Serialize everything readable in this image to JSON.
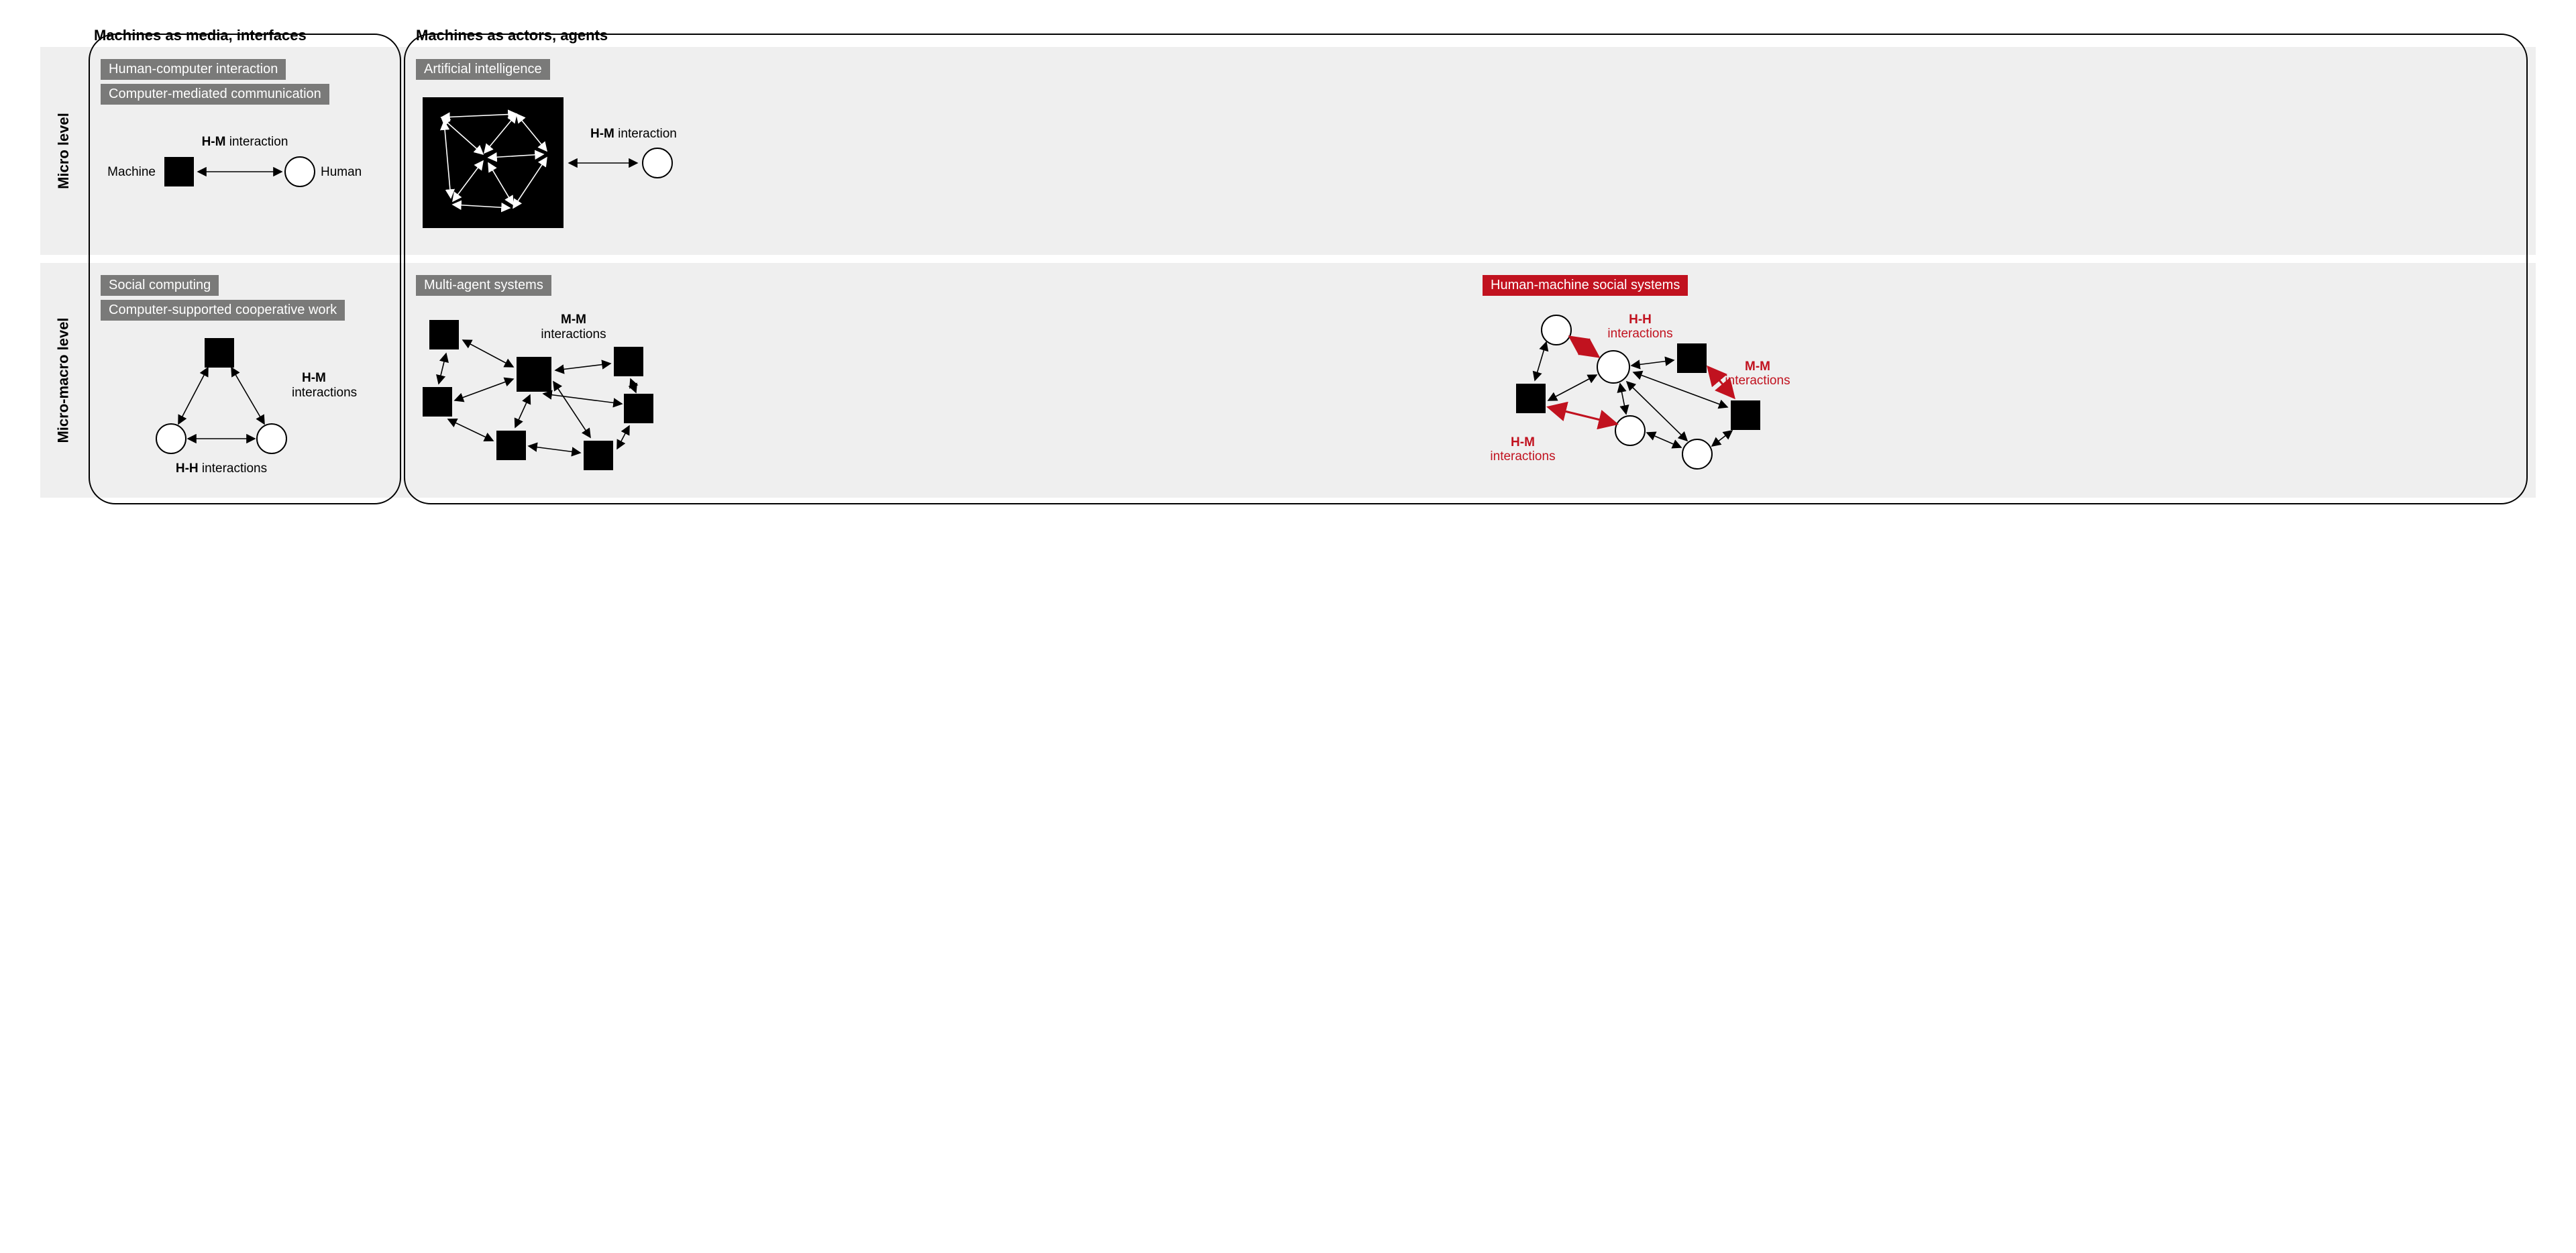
{
  "colors": {
    "background": "#ffffff",
    "row_bg": "#efefef",
    "tag_grey": "#7a7a79",
    "tag_red": "#c1121f",
    "text": "#000000",
    "red": "#c1121f",
    "node_machine_fill": "#000000",
    "node_human_fill": "#ffffff",
    "node_human_stroke": "#000000",
    "blackbox_bg": "#000000",
    "blackbox_fg": "#ffffff"
  },
  "headers": {
    "col_left": "Machines as media, interfaces",
    "col_right": "Machines as actors, agents",
    "row_top": "Micro level",
    "row_bottom": "Micro-macro level"
  },
  "q11": {
    "tags": [
      "Human-computer interaction",
      "Computer-mediated communication"
    ],
    "label_title_bold": "H-M",
    "label_title_rest": " interaction",
    "label_machine": "Machine",
    "label_human": "Human"
  },
  "q12": {
    "tags": [
      "Artificial intelligence"
    ],
    "label_title_bold": "H-M",
    "label_title_rest": " interaction"
  },
  "q21": {
    "tags": [
      "Social computing",
      "Computer-supported cooperative work"
    ],
    "label_hm_bold": "H-M",
    "label_hm_rest": "interactions",
    "label_hh_bold": "H-H",
    "label_hh_rest": " interactions"
  },
  "q22a": {
    "tag": "Multi-agent systems",
    "label_mm_bold": "M-M",
    "label_mm_rest": "interactions"
  },
  "q22b": {
    "tag": "Human-machine social systems",
    "label_hh_bold": "H-H",
    "label_hh_rest": "interactions",
    "label_mm_bold": "M-M",
    "label_mm_rest": "interactions",
    "label_hm_bold": "H-M",
    "label_hm_rest": "interactions"
  },
  "shapes": {
    "machine_half": 22,
    "human_r": 22,
    "stroke_w": 2,
    "arrow_len": 9
  }
}
